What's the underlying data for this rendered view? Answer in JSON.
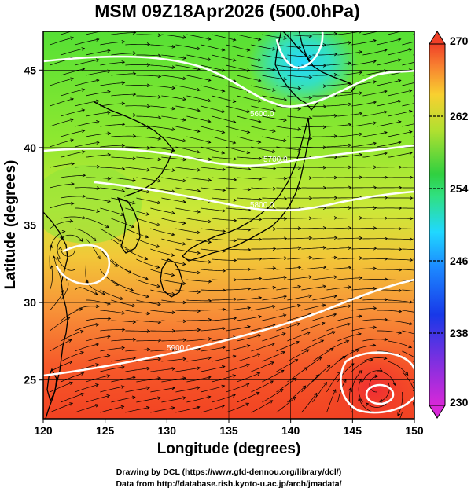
{
  "title": "MSM 09Z18Apr2026 (500.0hPa)",
  "axes": {
    "xlabel": "Longitude (degrees)",
    "ylabel": "Latitude  (degrees)",
    "xticks": [
      "120",
      "125",
      "130",
      "135",
      "140",
      "145",
      "150"
    ],
    "yticks": [
      "25",
      "30",
      "35",
      "40",
      "45"
    ]
  },
  "colorbar": {
    "ticks": [
      "270",
      "262",
      "254",
      "246",
      "238",
      "230"
    ]
  },
  "contour_labels": [
    "5600.0",
    "5700.0",
    "5800.0",
    "5900.0"
  ],
  "credits": {
    "line1": "Drawing by DCL (https://www.gfd-dennou.org/library/dcl/)",
    "line2": "Data from http://database.rish.kyoto-u.ac.jp/arch/jmadata/"
  },
  "chart_data": {
    "type": "heatmap",
    "variable": "temperature with wind streamlines and height contours",
    "title": "MSM 09Z18Apr2026 (500.0hPa)",
    "xlabel": "Longitude (degrees)",
    "ylabel": "Latitude  (degrees)",
    "xlim": [
      120,
      150
    ],
    "ylim": [
      22.5,
      47.5
    ],
    "color_range": [
      230,
      270
    ],
    "colorbar_ticks": [
      230,
      238,
      246,
      254,
      262,
      270
    ],
    "height_contours": [
      {
        "label": "5600.0",
        "lon": [
          120,
          125,
          130,
          135,
          140,
          145,
          150
        ],
        "lat": [
          44.1,
          44.3,
          43.8,
          42.0,
          41.5,
          42.2,
          44.4
        ]
      },
      {
        "label": "5700.0",
        "lon": [
          120,
          125,
          130,
          135,
          140,
          145,
          150
        ],
        "lat": [
          40.6,
          40.5,
          40.3,
          39.8,
          39.7,
          40.0,
          40.6
        ]
      },
      {
        "label": "5800.0",
        "lon": [
          125,
          130,
          135,
          140,
          145,
          150
        ],
        "lat": [
          37.9,
          37.5,
          37.0,
          36.9,
          37.1,
          37.6
        ]
      },
      {
        "label": "5900.0",
        "lon": [
          120,
          125,
          130,
          135,
          140,
          145,
          150
        ],
        "lat": [
          25.5,
          26.3,
          27.2,
          27.9,
          29.0,
          30.3,
          31.2
        ]
      }
    ],
    "cyclone_centers": [
      {
        "lon": 122.0,
        "lat": 33.8
      },
      {
        "lon": 147.0,
        "lat": 24.8
      }
    ],
    "grid": true
  },
  "colors": {
    "cold": "#00e0ff",
    "mid": "#30d040",
    "warm": "#ff4a20",
    "contour": "#ffffff",
    "coast": "#000000"
  }
}
